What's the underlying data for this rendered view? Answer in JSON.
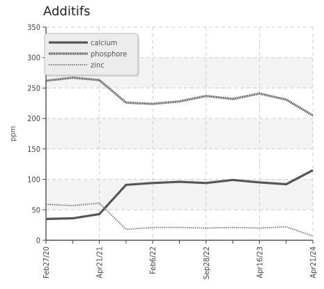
{
  "chart_data": {
    "type": "line",
    "title": "Additifs",
    "xlabel": "",
    "ylabel": "ppm",
    "ylim": [
      0,
      350
    ],
    "yticks": [
      0,
      50,
      100,
      150,
      200,
      250,
      300,
      350
    ],
    "grid": true,
    "legend_position": "top-left",
    "x": [
      "Feb27/20",
      "",
      "Apr21/21",
      "",
      "Feb6/22",
      "",
      "Sep28/22",
      "",
      "Apr16/23",
      "",
      "Apr21/24"
    ],
    "x_tick_labels": [
      "Feb27/20",
      "Apr21/21",
      "Feb6/22",
      "Sep28/22",
      "Apr16/23",
      "Apr21/24"
    ],
    "series": [
      {
        "name": "calcium",
        "style": "solid",
        "color": "#555555",
        "values": [
          35,
          36,
          43,
          91,
          94,
          96,
          94,
          99,
          95,
          92,
          115
        ]
      },
      {
        "name": "phosphore",
        "style": "dense-dotted",
        "color": "#555555",
        "values": [
          262,
          267,
          263,
          226,
          224,
          228,
          237,
          232,
          241,
          231,
          205
        ]
      },
      {
        "name": "zinc",
        "style": "dotted",
        "color": "#777777",
        "values": [
          59,
          57,
          61,
          18,
          21,
          21,
          20,
          21,
          20,
          22,
          7
        ]
      }
    ]
  }
}
